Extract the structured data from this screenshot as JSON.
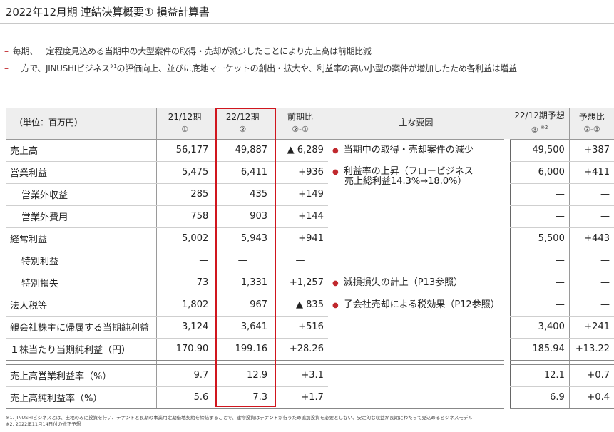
{
  "title": "2022年12月期 連結決算概要① 損益計算書",
  "bullets": [
    {
      "dash": "–",
      "text": "毎期、一定程度見込める当期中の大型案件の取得・売却が減少したことにより売上高は前期比減"
    },
    {
      "dash": "–",
      "text_a": "一方で、JINUSHIビジネス",
      "sup": "※1",
      "text_b": "の評価向上、並びに底地マーケットの創出・拡大や、利益率の高い小型の案件が増加したため各利益は増益"
    }
  ],
  "table": {
    "header": {
      "unit": "（単位：百万円）",
      "col1": "21/12期",
      "col1_sub": "①",
      "col2": "22/12期",
      "col2_sub": "②",
      "col3": "前期比",
      "col3_sub": "②-①",
      "col4": "主な要因",
      "col5": "22/12期予想",
      "col5_sub": "③",
      "col5_sup": "※2",
      "col6": "予想比",
      "col6_sub": "②-③"
    },
    "rows": [
      {
        "label": "売上高",
        "v1": "56,177",
        "v2": "49,887",
        "diff": "▲ 6,289",
        "forecast": "49,500",
        "vs": "+387"
      },
      {
        "label": "営業利益",
        "v1": "5,475",
        "v2": "6,411",
        "diff": "+936",
        "forecast": "6,000",
        "vs": "+411"
      },
      {
        "label": "営業外収益",
        "v1": "285",
        "v2": "435",
        "diff": "+149",
        "forecast": "—",
        "vs": "—"
      },
      {
        "label": "営業外費用",
        "v1": "758",
        "v2": "903",
        "diff": "+144",
        "forecast": "—",
        "vs": "—"
      },
      {
        "label": "経常利益",
        "v1": "5,002",
        "v2": "5,943",
        "diff": "+941",
        "forecast": "5,500",
        "vs": "+443"
      },
      {
        "label": "特別利益",
        "v1": "—",
        "v2": "—",
        "diff": "—",
        "forecast": "—",
        "vs": "—"
      },
      {
        "label": "特別損失",
        "v1": "73",
        "v2": "1,331",
        "diff": "+1,257",
        "forecast": "—",
        "vs": "—"
      },
      {
        "label": "法人税等",
        "v1": "1,802",
        "v2": "967",
        "diff": "▲ 835",
        "forecast": "—",
        "vs": "—"
      },
      {
        "label": "親会社株主に帰属する当期純利益",
        "v1": "3,124",
        "v2": "3,641",
        "diff": "+516",
        "forecast": "3,400",
        "vs": "+241"
      },
      {
        "label": "１株当たり当期純利益（円）",
        "v1": "170.90",
        "v2": "199.16",
        "diff": "+28.26",
        "forecast": "185.94",
        "vs": "+13.22"
      },
      {
        "label": "売上高営業利益率（%）",
        "v1": "9.7",
        "v2": "12.9",
        "diff": "+3.1",
        "forecast": "12.1",
        "vs": "+0.7"
      },
      {
        "label": "売上高純利益率（%）",
        "v1": "5.6",
        "v2": "7.3",
        "diff": "+1.7",
        "forecast": "6.9",
        "vs": "+0.4"
      }
    ],
    "reasons": [
      {
        "dot": "●",
        "text": "当期中の取得・売却案件の減少"
      },
      {
        "dot": "●",
        "line1": "利益率の上昇（フロービジネス",
        "line2": "売上総利益14.3%→18.0%）"
      },
      {
        "dot": "●",
        "text": "減損損失の計上（P13参照）"
      },
      {
        "dot": "●",
        "text": "子会社売却による税効果（P12参照）"
      }
    ]
  },
  "notes": [
    "※1. JINUSHIビジネスとは、土地のみに投資を行い、テナントと長期の事業用定期借地契約を締結することで、建物投資はテナントが行うため追加投資を必要としない、安定的な収益が長期にわたって見込めるビジネスモデル",
    "※2. 2022年11月14日付の修正予想"
  ],
  "colors": {
    "accent": "#d0161e",
    "header_bg": "#eeeeee"
  }
}
